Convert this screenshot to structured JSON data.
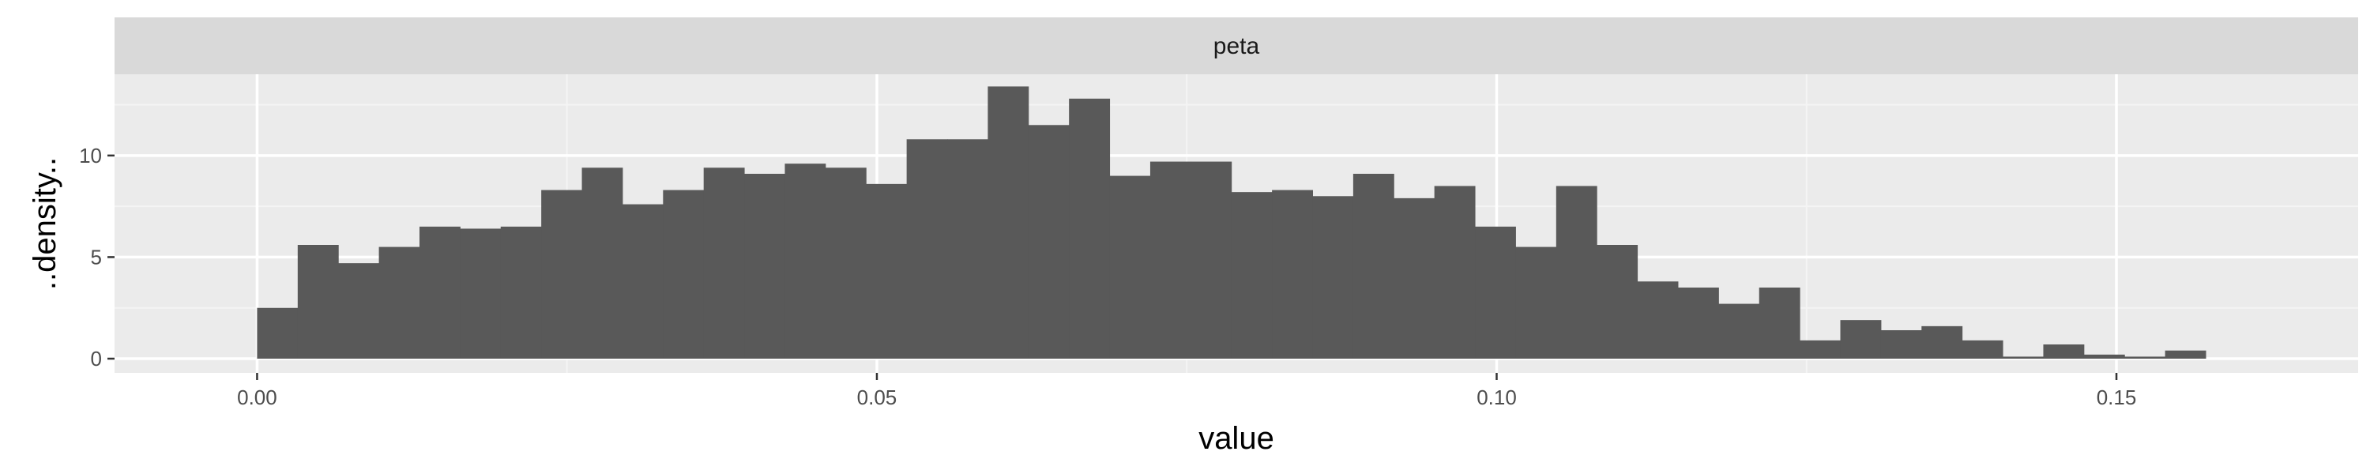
{
  "chart_data": {
    "type": "histogram",
    "facet_label": "peta",
    "xlabel": "value",
    "ylabel": "..density..",
    "xlim": [
      -0.0115,
      0.1695
    ],
    "ylim": [
      -0.7,
      14.0
    ],
    "x_ticks": [
      {
        "value": 0.0,
        "label": "0.00"
      },
      {
        "value": 0.05,
        "label": "0.05"
      },
      {
        "value": 0.1,
        "label": "0.10"
      },
      {
        "value": 0.15,
        "label": "0.15"
      }
    ],
    "y_ticks": [
      {
        "value": 0,
        "label": "0"
      },
      {
        "value": 5,
        "label": "5"
      },
      {
        "value": 10,
        "label": "10"
      }
    ],
    "grid": true,
    "bin_start": 0.0,
    "bin_width": 0.003275,
    "densities": [
      2.5,
      5.6,
      4.7,
      5.5,
      6.5,
      6.4,
      6.5,
      8.3,
      9.4,
      7.6,
      8.3,
      9.4,
      9.1,
      9.6,
      9.4,
      8.6,
      10.8,
      10.8,
      13.4,
      11.5,
      12.8,
      9.0,
      9.7,
      9.7,
      8.2,
      8.3,
      8.0,
      9.1,
      7.9,
      8.5,
      6.5,
      5.5,
      8.5,
      5.6,
      3.8,
      3.5,
      2.7,
      3.5,
      0.9,
      1.9,
      1.4,
      1.6,
      0.9,
      0.1,
      0.7,
      0.2,
      0.1,
      0.4
    ],
    "colors": {
      "panel": "#ebebeb",
      "strip": "#d9d9d9",
      "grid_major": "#ffffff",
      "grid_minor": "#f4f4f4",
      "bar": "#595959"
    }
  }
}
